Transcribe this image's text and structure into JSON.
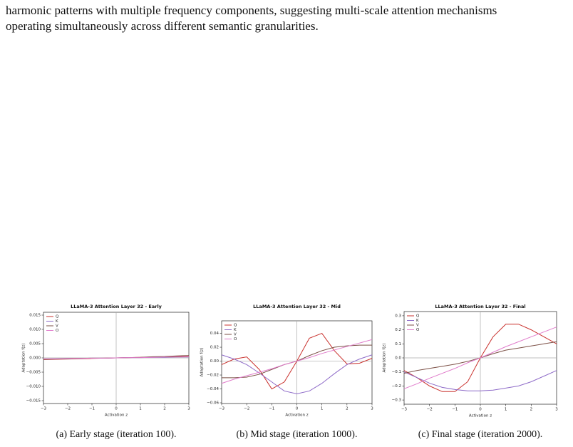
{
  "text": [
    "harmonic patterns with multiple frequency components, suggesting multi-scale attention mechanisms",
    "operating simultaneously across different semantic granularities."
  ],
  "chart_data": [
    {
      "type": "line",
      "title": "LLaMA-3 Attention Layer 32 - Early",
      "caption": "(a) Early stage (iteration 100).",
      "x_label": "Activation z",
      "y_label": "Adaptation f(z)",
      "x": [
        -3,
        -2.5,
        -2,
        -1.5,
        -1,
        -0.5,
        0,
        0.5,
        1,
        1.5,
        2,
        2.5,
        3
      ],
      "xlim": [
        -3,
        3
      ],
      "xticks": [
        {
          "value": -3,
          "label": "−3"
        },
        {
          "value": -2,
          "label": "−2"
        },
        {
          "value": -1,
          "label": "−1"
        },
        0,
        1,
        2,
        3
      ],
      "ylim": [
        -0.016,
        0.016
      ],
      "yticks": [
        {
          "value": -0.015,
          "label": "−0.015"
        },
        {
          "value": -0.01,
          "label": "−0.010"
        },
        {
          "value": -0.005,
          "label": "−0.005"
        },
        {
          "value": 0,
          "label": "0.000"
        },
        {
          "value": 0.005,
          "label": "0.005"
        },
        {
          "value": 0.01,
          "label": "0.010"
        },
        {
          "value": 0.015,
          "label": "0.015"
        }
      ],
      "legend": "upper left",
      "series": [
        {
          "name": "Q",
          "color": "#c9302c",
          "values": [
            -0.0006,
            -0.0005,
            -0.0004,
            -0.0003,
            -0.0002,
            -0.0001,
            0,
            0.0001,
            0.0002,
            0.0003,
            0.0004,
            0.0005,
            0.0005
          ]
        },
        {
          "name": "K",
          "color": "#8e6bc8",
          "values": [
            -0.0004,
            -0.0003,
            -0.0003,
            -0.0002,
            -0.0001,
            -0.0001,
            0,
            0.0001,
            0.0001,
            0.0002,
            0.0002,
            0.0003,
            0.0003
          ]
        },
        {
          "name": "V",
          "color": "#7b4f45",
          "values": [
            -0.0005,
            -0.0004,
            -0.0003,
            -0.0002,
            -0.0001,
            -0.0001,
            0,
            0.0001,
            0.0002,
            0.0004,
            0.0005,
            0.0007,
            0.0008
          ]
        },
        {
          "name": "O",
          "color": "#e07ccb",
          "values": [
            -0.0003,
            -0.0003,
            -0.0002,
            -0.0002,
            -0.0001,
            -0.0001,
            0,
            0.0001,
            0.0001,
            0.0002,
            0.0003,
            0.0003,
            0.0004
          ]
        }
      ]
    },
    {
      "type": "line",
      "title": "LLaMA-3 Attention Layer 32 - Mid",
      "caption": "(b) Mid stage (iteration 1000).",
      "x_label": "Activation z",
      "y_label": "Adaptation f(z)",
      "x": [
        -3,
        -2.5,
        -2,
        -1.5,
        -1,
        -0.5,
        0,
        0.5,
        1,
        1.5,
        2,
        2.5,
        3
      ],
      "xlim": [
        -3,
        3
      ],
      "xticks": [
        {
          "value": -3,
          "label": "−3"
        },
        {
          "value": -2,
          "label": "−2"
        },
        {
          "value": -1,
          "label": "−1"
        },
        0,
        1,
        2,
        3
      ],
      "ylim": [
        -0.061,
        0.058
      ],
      "yticks": [
        {
          "value": -0.06,
          "label": "−0.06"
        },
        {
          "value": -0.04,
          "label": "−0.04"
        },
        {
          "value": -0.02,
          "label": "−0.02"
        },
        {
          "value": 0,
          "label": "0.00"
        },
        {
          "value": 0.02,
          "label": "0.02"
        },
        {
          "value": 0.04,
          "label": "0.04"
        }
      ],
      "legend": "upper left",
      "series": [
        {
          "name": "Q",
          "color": "#c9302c",
          "values": [
            -0.005,
            0.003,
            0.006,
            -0.012,
            -0.04,
            -0.03,
            0,
            0.033,
            0.04,
            0.015,
            -0.004,
            -0.003,
            0.004
          ]
        },
        {
          "name": "K",
          "color": "#8e6bc8",
          "values": [
            0.009,
            0.003,
            -0.005,
            -0.017,
            -0.03,
            -0.043,
            -0.047,
            -0.043,
            -0.032,
            -0.018,
            -0.005,
            0.003,
            0.009
          ]
        },
        {
          "name": "V",
          "color": "#7b4f45",
          "values": [
            -0.024,
            -0.024,
            -0.023,
            -0.019,
            -0.012,
            -0.005,
            0,
            0.008,
            0.015,
            0.02,
            0.022,
            0.023,
            0.023
          ]
        },
        {
          "name": "O",
          "color": "#e07ccb",
          "values": [
            -0.032,
            -0.026,
            -0.021,
            -0.016,
            -0.011,
            -0.005,
            0,
            0.005,
            0.011,
            0.016,
            0.021,
            0.026,
            0.031
          ]
        }
      ]
    },
    {
      "type": "line",
      "title": "LLaMA-3 Attention Layer 32 - Final",
      "caption": "(c) Final stage (iteration 2000).",
      "x_label": "Activation z",
      "y_label": "Adaptation f(z)",
      "x": [
        -3,
        -2.5,
        -2,
        -1.5,
        -1,
        -0.5,
        0,
        0.5,
        1,
        1.5,
        2,
        2.5,
        3
      ],
      "xlim": [
        -3,
        3
      ],
      "xticks": [
        {
          "value": -3,
          "label": "−3"
        },
        {
          "value": -2,
          "label": "−2"
        },
        {
          "value": -1,
          "label": "−1"
        },
        0,
        1,
        2,
        3
      ],
      "ylim": [
        -0.33,
        0.33
      ],
      "yticks": [
        {
          "value": -0.3,
          "label": "−0.3"
        },
        {
          "value": -0.2,
          "label": "−0.2"
        },
        {
          "value": -0.1,
          "label": "−0.1"
        },
        {
          "value": 0,
          "label": "0.0"
        },
        0.1,
        0.2,
        0.3
      ],
      "legend": "upper left",
      "series": [
        {
          "name": "Q",
          "color": "#c9302c",
          "values": [
            -0.09,
            -0.14,
            -0.2,
            -0.24,
            -0.24,
            -0.17,
            0,
            0.15,
            0.24,
            0.24,
            0.2,
            0.15,
            0.1
          ]
        },
        {
          "name": "K",
          "color": "#8e6bc8",
          "values": [
            -0.1,
            -0.14,
            -0.18,
            -0.21,
            -0.225,
            -0.235,
            -0.235,
            -0.23,
            -0.215,
            -0.2,
            -0.17,
            -0.13,
            -0.09
          ]
        },
        {
          "name": "V",
          "color": "#7b4f45",
          "values": [
            -0.11,
            -0.09,
            -0.075,
            -0.06,
            -0.045,
            -0.025,
            0,
            0.03,
            0.055,
            0.07,
            0.085,
            0.1,
            0.115
          ]
        },
        {
          "name": "O",
          "color": "#e07ccb",
          "values": [
            -0.22,
            -0.185,
            -0.145,
            -0.11,
            -0.075,
            -0.035,
            0,
            0.04,
            0.08,
            0.115,
            0.15,
            0.185,
            0.22
          ]
        }
      ]
    }
  ]
}
